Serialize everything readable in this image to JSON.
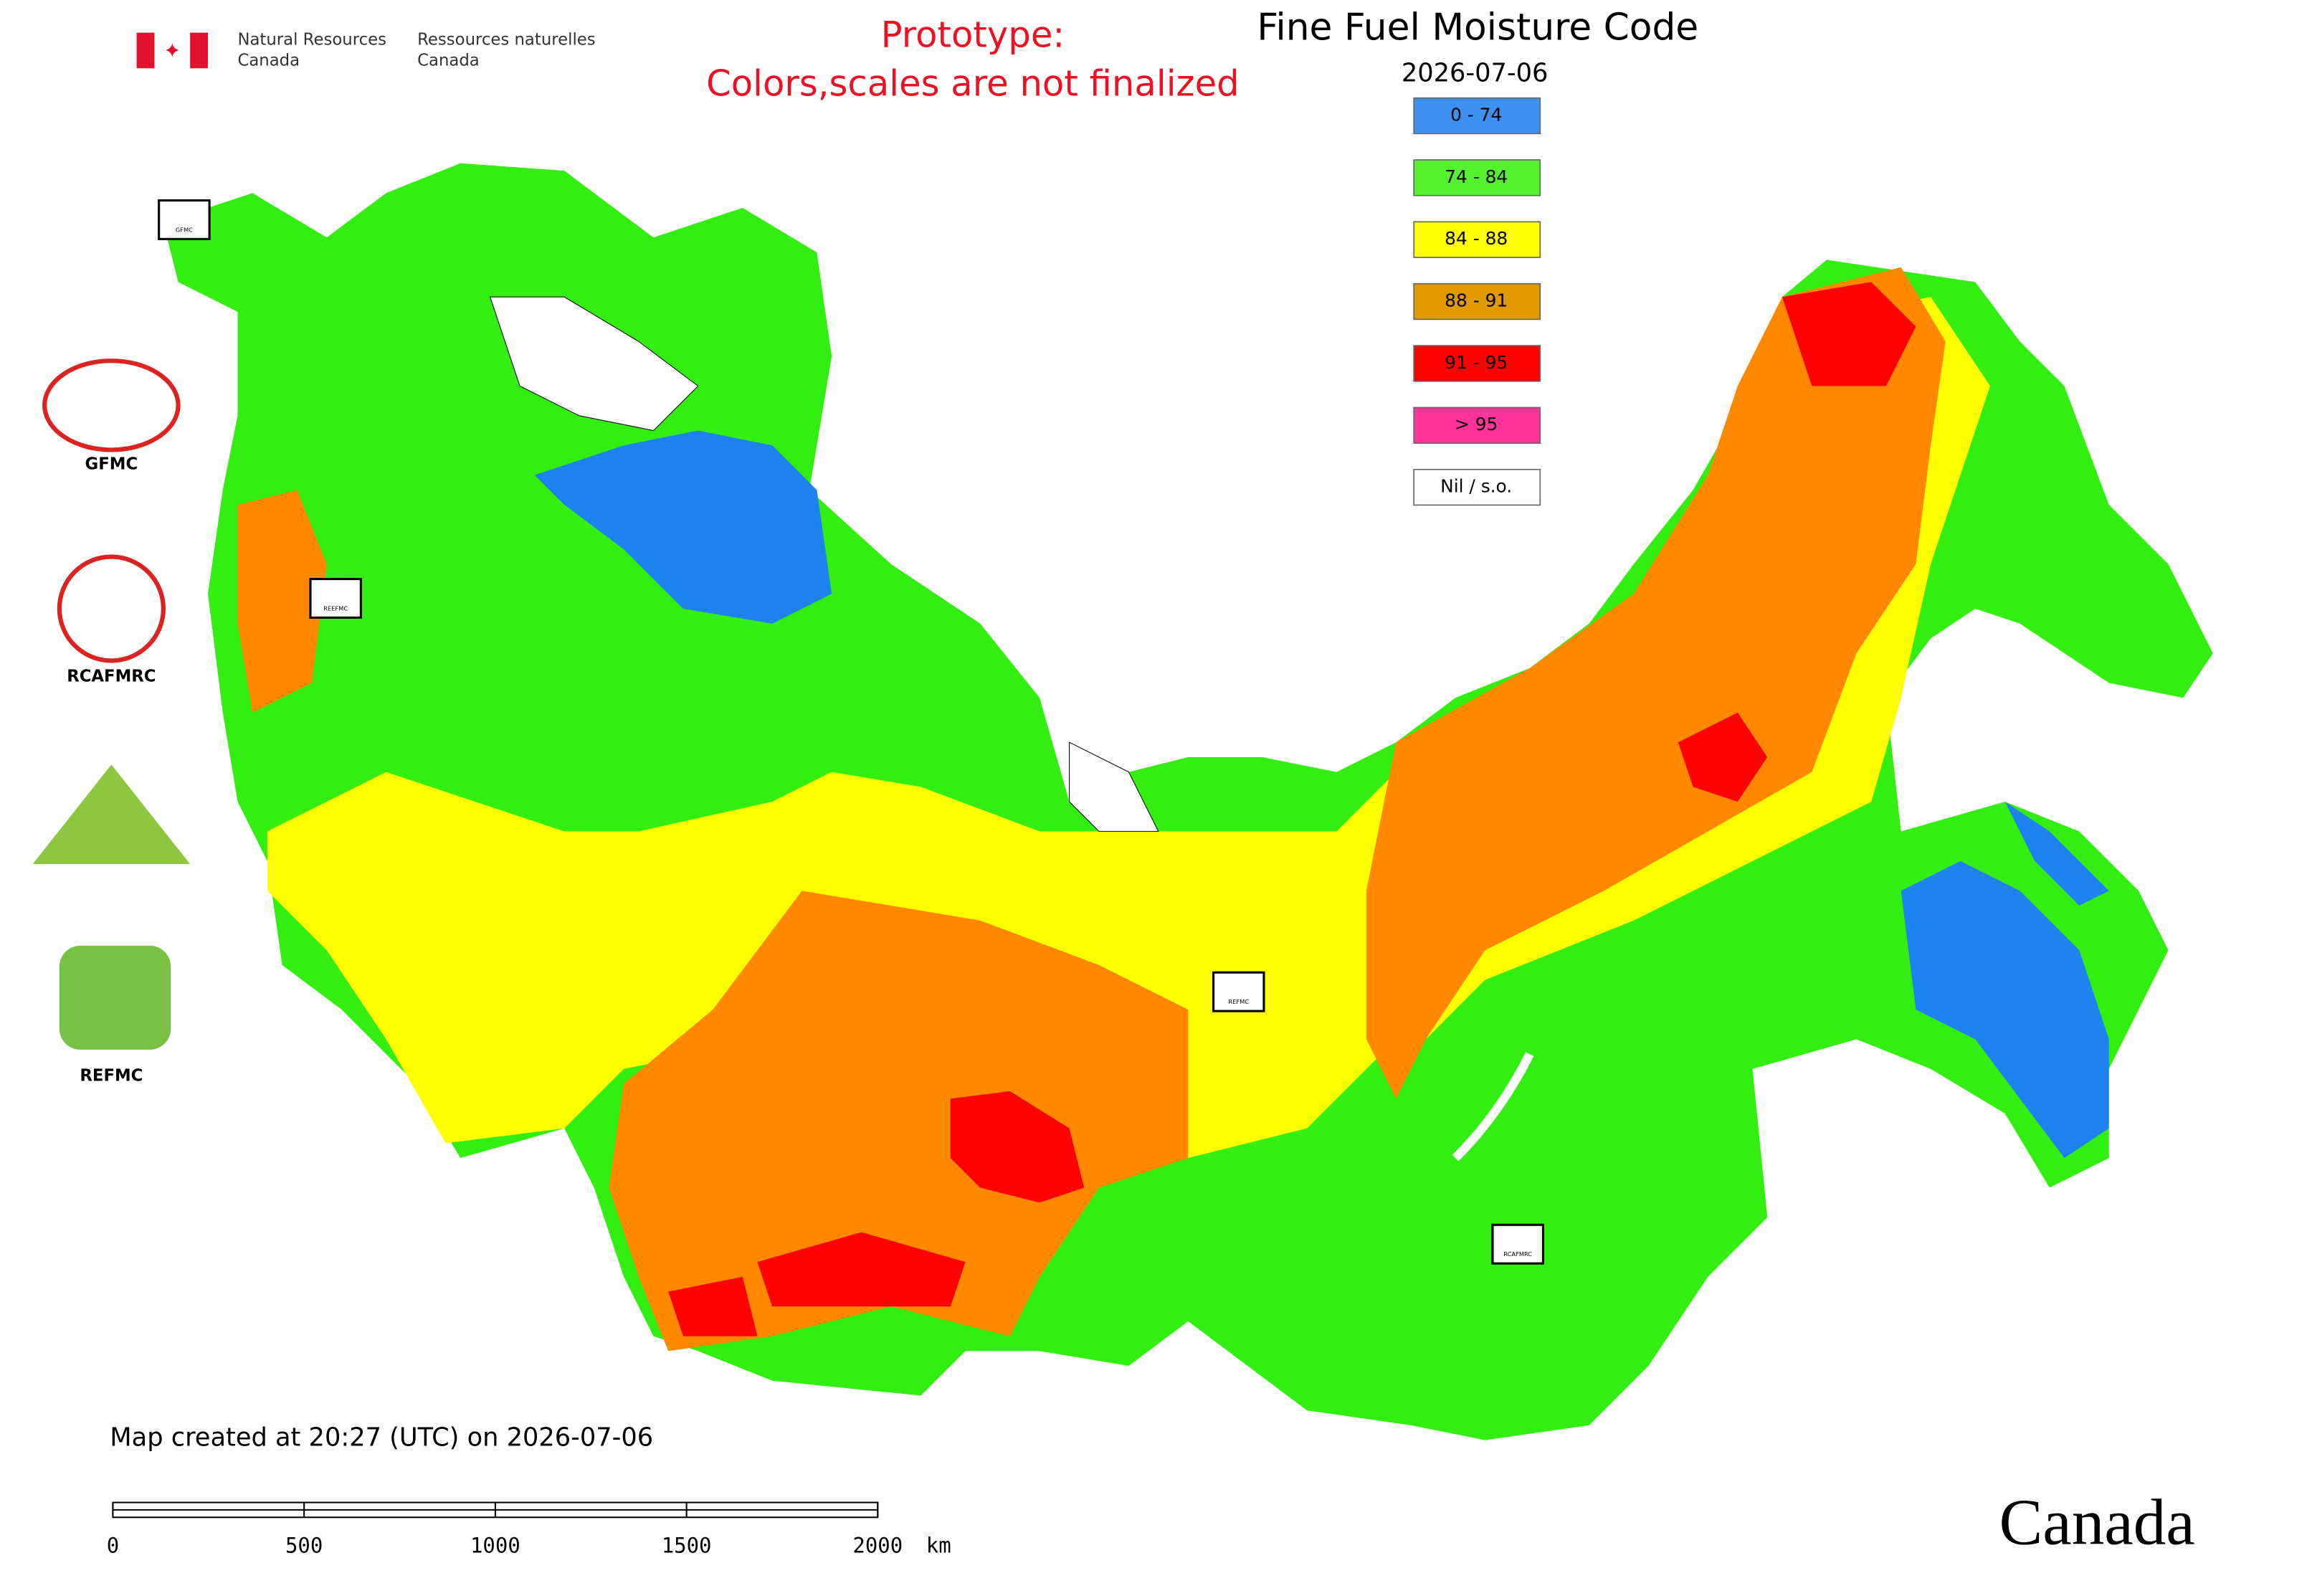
{
  "header": {
    "agency_en": [
      "Natural Resources",
      "Canada"
    ],
    "agency_fr": [
      "Ressources naturelles",
      "Canada"
    ],
    "notice": [
      "Prototype:",
      "Colors,scales are not finalized"
    ]
  },
  "map": {
    "title": "Fine Fuel Moisture Code",
    "date": "2026-07-06",
    "legend": [
      {
        "label": "0 - 74",
        "color": "#3d8ff0"
      },
      {
        "label": "74 - 84",
        "color": "#55f030"
      },
      {
        "label": "84 - 88",
        "color": "#ffff00"
      },
      {
        "label": "88 - 91",
        "color": "#e09a00"
      },
      {
        "label": "91 - 95",
        "color": "#ff0000"
      },
      {
        "label": "> 95",
        "color": "#ff3399"
      },
      {
        "label": "Nil / s.o.",
        "color": "#ffffff"
      }
    ],
    "stations": [
      "GFMC",
      "REEFMC",
      "REFMC",
      "RCAFMRC"
    ],
    "created": "Map created at 20:27 (UTC) on 2026-07-06",
    "scale_bar": {
      "labels": [
        "0",
        "500",
        "1000",
        "1500",
        "2000"
      ],
      "unit": "km"
    }
  },
  "logos": [
    "GFMC",
    "RCAFMRC",
    "REFMC"
  ],
  "footer": {
    "wordmark": "Canada"
  }
}
